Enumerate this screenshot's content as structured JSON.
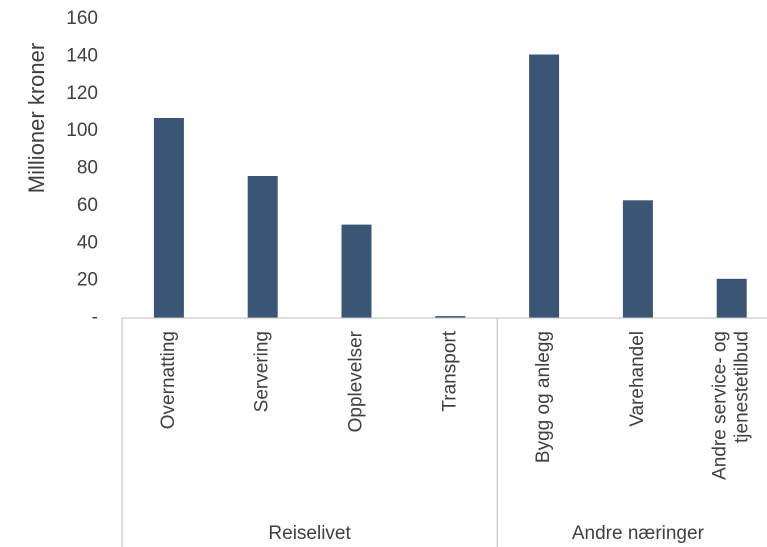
{
  "chart_data": {
    "type": "bar",
    "title": "",
    "ylabel": "Millioner kroner",
    "xlabel": "",
    "ylim": [
      0,
      160
    ],
    "yticks": [
      {
        "value": 0,
        "label": "-"
      },
      {
        "value": 20,
        "label": "20"
      },
      {
        "value": 40,
        "label": "40"
      },
      {
        "value": 60,
        "label": "60"
      },
      {
        "value": 80,
        "label": "80"
      },
      {
        "value": 100,
        "label": "100"
      },
      {
        "value": 120,
        "label": "120"
      },
      {
        "value": 140,
        "label": "140"
      },
      {
        "value": 160,
        "label": "160"
      }
    ],
    "categories": [
      [
        "Overnatting"
      ],
      [
        "Servering"
      ],
      [
        "Opplevelser"
      ],
      [
        "Transport"
      ],
      [
        "Bygg og anlegg"
      ],
      [
        "Varehandel"
      ],
      [
        "Andre service- og",
        "tjenestetilbud"
      ]
    ],
    "values": [
      107,
      76,
      50,
      1,
      141,
      63,
      21
    ],
    "groups": [
      {
        "label": "Reiselivet",
        "count": 4
      },
      {
        "label": "Andre næringer",
        "count": 3
      }
    ],
    "bar_color": "#3a5674",
    "axis_color": "#bfbfbf",
    "grid": false,
    "legend": "none"
  }
}
